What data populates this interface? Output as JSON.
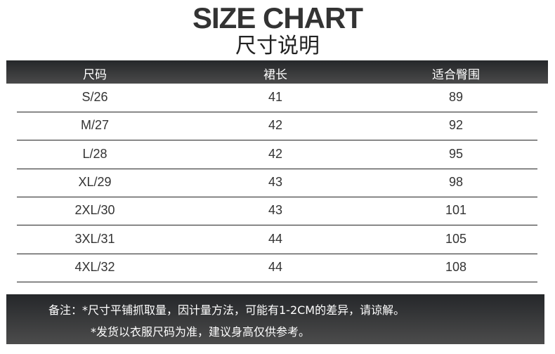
{
  "title": "SIZE CHART",
  "subtitle": "尺寸说明",
  "headers": [
    "尺码",
    "裙长",
    "适合臀围"
  ],
  "rows": [
    [
      "S/26",
      "41",
      "89"
    ],
    [
      "M/27",
      "42",
      "92"
    ],
    [
      "L/28",
      "42",
      "95"
    ],
    [
      "XL/29",
      "43",
      "98"
    ],
    [
      "2XL/30",
      "43",
      "101"
    ],
    [
      "3XL/31",
      "44",
      "105"
    ],
    [
      "4XL/32",
      "44",
      "108"
    ]
  ],
  "notes": [
    "备注：*尺寸平铺抓取量，因计量方法，可能有1-2CM的差异，请谅解。",
    "*发货以衣服尺码为准，建议身高仅供参考。"
  ]
}
